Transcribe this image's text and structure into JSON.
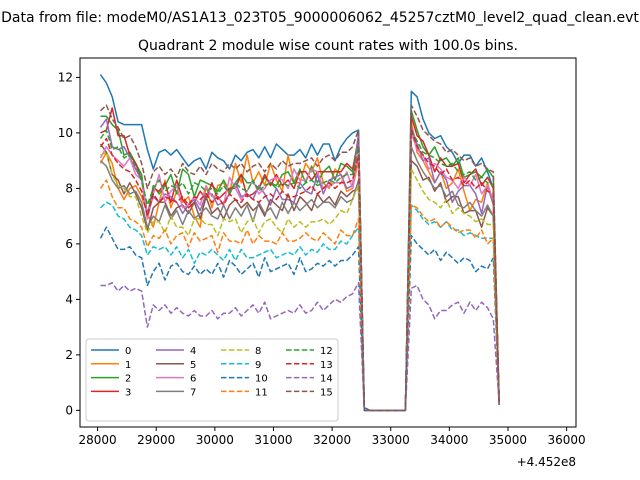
{
  "chart_data": {
    "type": "line",
    "suptitle": "Data from file: modeM0/AS1A13_023T05_9000006062_45257cztM0_level2_quad_clean.evt",
    "title": "Quadrant 2 module wise count rates with 100.0s bins.",
    "xlabel": "",
    "ylabel": "",
    "x_offset_label": "+4.452e8",
    "xlim": [
      27700,
      36160
    ],
    "ylim": [
      -0.6,
      12.7
    ],
    "xticks": [
      28000,
      29000,
      30000,
      31000,
      32000,
      33000,
      34000,
      35000,
      36000
    ],
    "xtick_labels": [
      "28000",
      "29000",
      "30000",
      "31000",
      "32000",
      "33000",
      "34000",
      "35000",
      "36000"
    ],
    "yticks": [
      0,
      2,
      4,
      6,
      8,
      10,
      12
    ],
    "ytick_labels": [
      "0",
      "2",
      "4",
      "6",
      "8",
      "10",
      "12"
    ],
    "grid": false,
    "legend_position": "lower-left",
    "legend_columns": 4,
    "x_start": 28050,
    "x_step": 100,
    "series": [
      {
        "name": "0",
        "color": "#1f77b4",
        "dash": "solid",
        "values": [
          12.1,
          11.8,
          11.3,
          10.4,
          10.3,
          10.3,
          10.3,
          10.3,
          9.4,
          8.7,
          9.3,
          9.4,
          9.2,
          9.4,
          9.1,
          8.8,
          9.0,
          9.1,
          8.7,
          9.3,
          9.1,
          9.0,
          8.7,
          9.2,
          9.0,
          9.3,
          9.4,
          9.1,
          9.5,
          9.1,
          9.6,
          9.4,
          9.2,
          9.2,
          9.4,
          9.1,
          9.6,
          9.2,
          9.6,
          9.6,
          9.0,
          9.5,
          9.8,
          10.0,
          10.1,
          0.1,
          0.0,
          0.0,
          0.0,
          0.0,
          0.0,
          0.0,
          0.0,
          11.5,
          11.3,
          10.5,
          10.0,
          9.8,
          9.9,
          9.5,
          9.3,
          8.9,
          9.2,
          9.2,
          8.8,
          9.1,
          8.6,
          8.0,
          0.2
        ]
      },
      {
        "name": "1",
        "color": "#ff7f0e",
        "dash": "solid",
        "values": [
          8.9,
          9.3,
          8.9,
          8.0,
          7.6,
          8.0,
          8.1,
          7.7,
          7.1,
          6.6,
          7.5,
          8.3,
          7.3,
          7.9,
          7.5,
          7.7,
          7.0,
          6.6,
          8.1,
          7.3,
          8.1,
          8.2,
          7.8,
          8.9,
          8.2,
          9.2,
          8.2,
          8.6,
          8.1,
          8.9,
          8.3,
          7.9,
          9.2,
          8.2,
          8.2,
          8.9,
          8.6,
          9.1,
          8.2,
          8.0,
          8.7,
          8.5,
          7.9,
          8.0,
          9.0,
          0.0,
          0.0,
          0.0,
          0.0,
          0.0,
          0.0,
          0.0,
          0.0,
          10.4,
          9.3,
          9.0,
          8.6,
          8.2,
          8.6,
          8.0,
          8.2,
          8.7,
          7.9,
          7.2,
          7.6,
          7.5,
          8.2,
          7.5,
          0.2
        ]
      },
      {
        "name": "2",
        "color": "#2ca02c",
        "dash": "solid",
        "values": [
          10.6,
          10.6,
          10.3,
          10.1,
          9.2,
          9.3,
          8.9,
          8.5,
          7.0,
          8.1,
          7.8,
          8.1,
          8.5,
          7.8,
          8.7,
          8.5,
          7.7,
          8.3,
          8.2,
          8.1,
          7.9,
          8.3,
          7.9,
          8.2,
          8.5,
          8.2,
          8.2,
          8.0,
          8.4,
          8.2,
          8.1,
          8.5,
          8.6,
          8.2,
          8.7,
          8.2,
          8.8,
          8.2,
          8.6,
          8.8,
          8.3,
          8.9,
          8.8,
          8.6,
          9.9,
          0.0,
          0.0,
          0.0,
          0.0,
          0.0,
          0.0,
          0.0,
          0.0,
          10.8,
          10.1,
          9.5,
          9.2,
          9.5,
          9.0,
          9.1,
          8.8,
          9.1,
          8.4,
          8.5,
          8.6,
          8.4,
          8.7,
          8.4,
          0.2
        ]
      },
      {
        "name": "3",
        "color": "#d62728",
        "dash": "solid",
        "values": [
          10.0,
          10.1,
          10.9,
          9.9,
          9.9,
          9.2,
          8.9,
          8.3,
          6.9,
          8.0,
          7.9,
          8.2,
          7.5,
          8.3,
          7.6,
          7.3,
          7.5,
          7.9,
          7.6,
          8.2,
          7.6,
          7.8,
          8.0,
          8.0,
          8.5,
          7.7,
          7.8,
          8.0,
          8.5,
          8.1,
          8.5,
          8.1,
          8.3,
          8.0,
          8.6,
          8.6,
          8.3,
          8.6,
          8.6,
          8.6,
          8.6,
          8.6,
          8.9,
          8.7,
          9.7,
          0.0,
          0.0,
          0.0,
          0.0,
          0.0,
          0.0,
          0.0,
          0.0,
          10.6,
          9.9,
          9.7,
          9.2,
          8.6,
          9.1,
          8.8,
          8.8,
          8.9,
          8.2,
          8.5,
          8.7,
          8.1,
          8.4,
          8.0,
          0.2
        ]
      },
      {
        "name": "4",
        "color": "#9467bd",
        "dash": "solid",
        "values": [
          10.2,
          10.5,
          9.5,
          9.4,
          9.5,
          9.1,
          8.7,
          8.3,
          7.1,
          7.7,
          7.5,
          7.8,
          7.7,
          7.5,
          7.1,
          7.4,
          7.6,
          7.2,
          7.8,
          7.8,
          7.4,
          7.5,
          7.8,
          8.2,
          7.7,
          7.8,
          7.6,
          8.1,
          7.8,
          7.4,
          8.0,
          7.6,
          7.6,
          7.5,
          8.2,
          7.9,
          7.8,
          8.5,
          7.8,
          8.3,
          8.4,
          8.5,
          8.0,
          8.1,
          10.0,
          0.0,
          0.0,
          0.0,
          0.0,
          0.0,
          0.0,
          0.0,
          0.0,
          10.2,
          9.6,
          9.0,
          9.1,
          8.2,
          8.6,
          8.3,
          7.5,
          7.9,
          8.1,
          8.1,
          7.8,
          7.1,
          8.1,
          7.4,
          0.2
        ]
      },
      {
        "name": "5",
        "color": "#8c564b",
        "dash": "solid",
        "values": [
          9.6,
          9.3,
          8.5,
          8.3,
          7.8,
          8.2,
          7.8,
          7.3,
          6.5,
          7.3,
          7.5,
          7.5,
          7.0,
          7.3,
          7.4,
          7.1,
          7.5,
          6.9,
          7.7,
          7.1,
          7.3,
          6.9,
          7.4,
          7.6,
          7.3,
          7.5,
          7.2,
          7.4,
          7.0,
          7.6,
          7.4,
          7.2,
          7.8,
          7.2,
          7.7,
          7.5,
          7.2,
          7.8,
          7.5,
          7.7,
          7.4,
          7.9,
          7.7,
          7.9,
          8.0,
          0.0,
          0.0,
          0.0,
          0.0,
          0.0,
          0.0,
          0.0,
          0.0,
          9.0,
          8.8,
          8.3,
          8.4,
          7.9,
          8.2,
          7.5,
          7.7,
          7.7,
          7.1,
          7.2,
          7.2,
          6.6,
          7.3,
          7.0,
          0.2
        ]
      },
      {
        "name": "6",
        "color": "#e377c2",
        "dash": "solid",
        "values": [
          9.1,
          9.5,
          9.2,
          9.0,
          8.8,
          9.1,
          8.5,
          8.3,
          6.9,
          7.8,
          8.5,
          7.5,
          7.9,
          8.1,
          7.3,
          7.4,
          7.7,
          7.4,
          8.1,
          7.7,
          7.7,
          7.4,
          8.4,
          8.0,
          7.6,
          7.9,
          8.3,
          7.8,
          8.0,
          8.3,
          8.4,
          8.3,
          8.0,
          8.7,
          8.3,
          8.3,
          8.7,
          8.6,
          8.0,
          8.1,
          8.2,
          8.2,
          8.6,
          8.0,
          9.3,
          0.0,
          0.0,
          0.0,
          0.0,
          0.0,
          0.0,
          0.0,
          0.0,
          10.0,
          9.4,
          9.2,
          8.7,
          8.9,
          8.7,
          8.4,
          8.3,
          8.0,
          8.4,
          8.1,
          8.5,
          7.8,
          8.1,
          7.6,
          0.2
        ]
      },
      {
        "name": "7",
        "color": "#7f7f7f",
        "dash": "solid",
        "values": [
          9.0,
          8.8,
          8.3,
          8.0,
          8.1,
          7.8,
          7.9,
          7.5,
          6.6,
          7.0,
          6.8,
          7.4,
          6.9,
          7.2,
          6.7,
          7.2,
          6.9,
          7.1,
          7.3,
          7.0,
          6.9,
          7.4,
          6.9,
          7.3,
          7.0,
          7.4,
          6.8,
          7.5,
          7.1,
          7.3,
          6.9,
          7.5,
          7.1,
          7.5,
          7.2,
          7.4,
          7.6,
          7.3,
          7.5,
          7.5,
          7.3,
          7.7,
          7.5,
          7.6,
          8.3,
          0.0,
          0.0,
          0.0,
          0.0,
          0.0,
          0.0,
          0.0,
          0.0,
          9.5,
          9.0,
          8.6,
          8.3,
          8.0,
          8.1,
          7.7,
          7.9,
          7.4,
          7.3,
          7.5,
          7.2,
          7.0,
          7.4,
          7.0,
          0.2
        ]
      },
      {
        "name": "8",
        "color": "#bcbd22",
        "dash": "dashed",
        "values": [
          9.2,
          9.3,
          8.5,
          8.1,
          8.0,
          7.7,
          7.7,
          7.0,
          6.4,
          6.8,
          6.8,
          6.4,
          7.0,
          6.6,
          6.6,
          6.3,
          6.9,
          6.9,
          6.7,
          6.7,
          6.3,
          6.9,
          6.8,
          6.9,
          6.4,
          6.8,
          6.9,
          6.4,
          6.8,
          6.9,
          6.6,
          6.4,
          6.9,
          6.6,
          6.8,
          6.6,
          6.8,
          6.8,
          6.9,
          6.7,
          6.9,
          7.2,
          7.1,
          7.6,
          8.1,
          0.0,
          0.0,
          0.0,
          0.0,
          0.0,
          0.0,
          0.0,
          0.0,
          8.7,
          8.3,
          7.9,
          7.6,
          7.5,
          7.3,
          7.6,
          7.1,
          7.3,
          7.1,
          7.0,
          6.8,
          6.9,
          6.7,
          6.7,
          0.2
        ]
      },
      {
        "name": "9",
        "color": "#17becf",
        "dash": "dashed",
        "values": [
          7.3,
          7.5,
          7.4,
          7.0,
          6.9,
          6.6,
          6.5,
          6.3,
          5.6,
          5.9,
          5.8,
          5.9,
          5.6,
          5.9,
          5.5,
          5.8,
          5.3,
          5.7,
          5.6,
          5.8,
          5.6,
          5.4,
          5.8,
          5.4,
          5.8,
          5.5,
          5.5,
          5.6,
          5.7,
          5.8,
          5.5,
          5.6,
          5.7,
          5.6,
          5.9,
          5.6,
          5.8,
          5.7,
          6.0,
          5.8,
          5.8,
          6.1,
          6.0,
          6.3,
          6.6,
          0.0,
          0.0,
          0.0,
          0.0,
          0.0,
          0.0,
          0.0,
          0.0,
          7.4,
          7.2,
          6.9,
          6.7,
          6.8,
          6.6,
          6.8,
          6.5,
          6.5,
          6.3,
          6.4,
          6.3,
          6.2,
          6.2,
          6.2,
          0.2
        ]
      },
      {
        "name": "10",
        "color": "#1f77b4",
        "dash": "dashed",
        "values": [
          6.2,
          6.6,
          6.2,
          5.8,
          5.8,
          5.9,
          5.6,
          5.5,
          4.5,
          5.0,
          5.3,
          4.7,
          5.2,
          5.3,
          5.0,
          4.9,
          5.2,
          4.9,
          5.1,
          4.9,
          5.3,
          4.8,
          5.4,
          5.2,
          4.9,
          5.1,
          5.3,
          4.8,
          5.5,
          5.0,
          5.1,
          5.2,
          5.3,
          4.9,
          5.5,
          5.0,
          5.1,
          5.3,
          5.2,
          5.4,
          5.2,
          5.4,
          5.4,
          5.6,
          5.9,
          0.0,
          0.0,
          0.0,
          0.0,
          0.0,
          0.0,
          0.0,
          0.0,
          6.3,
          6.0,
          5.8,
          5.6,
          5.8,
          5.4,
          5.7,
          5.5,
          5.3,
          5.5,
          5.4,
          5.0,
          5.2,
          5.1,
          5.5,
          0.2
        ]
      },
      {
        "name": "11",
        "color": "#ff7f0e",
        "dash": "dashed",
        "values": [
          8.0,
          8.3,
          7.7,
          7.3,
          7.3,
          6.9,
          6.8,
          6.6,
          5.9,
          6.3,
          6.2,
          6.5,
          6.0,
          6.3,
          6.4,
          5.9,
          6.4,
          6.1,
          6.2,
          6.3,
          5.7,
          6.4,
          6.1,
          6.1,
          6.0,
          6.5,
          6.0,
          6.3,
          6.1,
          6.1,
          6.0,
          6.4,
          6.1,
          6.1,
          6.2,
          6.4,
          6.2,
          6.1,
          6.4,
          6.2,
          6.0,
          6.5,
          6.3,
          6.3,
          6.9,
          0.0,
          0.0,
          0.0,
          0.0,
          0.0,
          0.0,
          0.0,
          0.0,
          7.4,
          7.3,
          7.0,
          6.8,
          6.9,
          6.6,
          6.8,
          6.6,
          6.4,
          6.5,
          6.5,
          6.2,
          6.5,
          6.0,
          6.2,
          0.2
        ]
      },
      {
        "name": "12",
        "color": "#2ca02c",
        "dash": "dashed",
        "values": [
          9.8,
          10.1,
          9.4,
          9.5,
          9.1,
          9.2,
          8.8,
          8.3,
          7.4,
          8.0,
          8.3,
          7.9,
          8.1,
          8.0,
          8.2,
          7.8,
          8.2,
          8.1,
          7.9,
          8.0,
          7.8,
          8.1,
          7.8,
          8.2,
          8.0,
          7.9,
          8.3,
          7.9,
          8.1,
          8.2,
          8.0,
          8.2,
          8.1,
          8.2,
          8.0,
          8.2,
          8.3,
          8.1,
          8.2,
          8.3,
          8.2,
          8.4,
          8.5,
          8.5,
          9.5,
          0.0,
          0.0,
          0.0,
          0.0,
          0.0,
          0.0,
          0.0,
          0.0,
          10.1,
          9.7,
          9.3,
          9.2,
          9.1,
          8.9,
          8.8,
          8.9,
          8.6,
          8.5,
          8.6,
          8.3,
          8.4,
          8.2,
          8.1,
          0.2
        ]
      },
      {
        "name": "13",
        "color": "#d62728",
        "dash": "dashed",
        "values": [
          9.5,
          9.8,
          9.2,
          8.9,
          8.7,
          8.6,
          8.3,
          7.9,
          7.0,
          7.8,
          7.5,
          7.7,
          7.6,
          7.5,
          7.7,
          7.4,
          7.7,
          7.6,
          7.8,
          7.5,
          7.7,
          7.4,
          7.8,
          7.6,
          7.5,
          7.8,
          7.6,
          7.5,
          7.7,
          7.8,
          7.6,
          7.9,
          7.7,
          7.7,
          7.8,
          7.9,
          8.1,
          7.8,
          8.0,
          8.2,
          8.0,
          8.2,
          8.2,
          8.3,
          9.2,
          0.0,
          0.0,
          0.0,
          0.0,
          0.0,
          0.0,
          0.0,
          0.0,
          10.1,
          9.5,
          9.2,
          8.9,
          8.8,
          8.5,
          8.7,
          8.3,
          8.4,
          8.1,
          8.3,
          8.0,
          8.2,
          7.9,
          7.8,
          0.2
        ]
      },
      {
        "name": "14",
        "color": "#9467bd",
        "dash": "dashed",
        "values": [
          4.5,
          4.5,
          4.6,
          4.3,
          4.5,
          4.3,
          4.4,
          4.3,
          3.0,
          3.8,
          3.6,
          3.8,
          3.5,
          3.7,
          3.5,
          3.4,
          3.6,
          3.4,
          3.4,
          3.6,
          3.3,
          3.5,
          3.5,
          3.7,
          3.4,
          3.6,
          3.8,
          3.5,
          3.9,
          3.3,
          3.4,
          3.5,
          3.6,
          3.5,
          3.8,
          3.5,
          3.6,
          3.9,
          3.6,
          3.8,
          4.0,
          3.9,
          4.1,
          4.2,
          4.6,
          0.0,
          0.0,
          0.0,
          0.0,
          0.0,
          0.0,
          0.0,
          0.0,
          4.4,
          4.5,
          4.0,
          3.8,
          3.3,
          3.6,
          3.6,
          3.8,
          3.9,
          3.5,
          3.9,
          3.6,
          3.9,
          3.7,
          3.3,
          0.2
        ]
      },
      {
        "name": "15",
        "color": "#8c564b",
        "dash": "dashed",
        "values": [
          10.8,
          11.0,
          10.5,
          10.2,
          9.8,
          9.9,
          9.5,
          8.9,
          8.0,
          8.6,
          8.8,
          8.5,
          8.7,
          8.4,
          8.9,
          8.6,
          8.5,
          8.8,
          8.5,
          8.9,
          8.7,
          8.6,
          8.9,
          8.7,
          8.9,
          8.6,
          8.8,
          8.9,
          8.6,
          8.9,
          8.7,
          9.0,
          8.8,
          8.9,
          8.9,
          9.0,
          9.1,
          8.8,
          9.1,
          9.2,
          9.0,
          9.3,
          9.3,
          9.5,
          10.1,
          0.0,
          0.0,
          0.0,
          0.0,
          0.0,
          0.0,
          0.0,
          0.0,
          11.0,
          10.6,
          10.1,
          9.9,
          9.7,
          9.6,
          9.3,
          9.4,
          9.2,
          9.0,
          9.1,
          8.8,
          8.9,
          8.7,
          8.6,
          0.3
        ]
      }
    ]
  }
}
